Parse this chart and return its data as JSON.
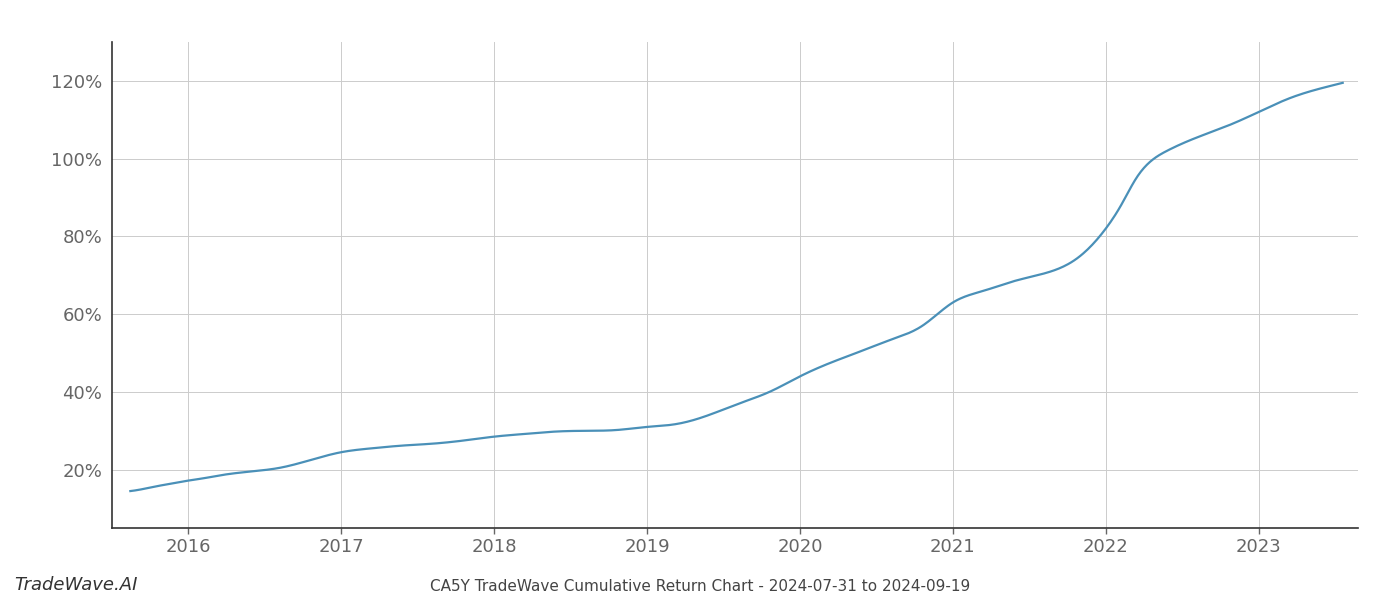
{
  "title": "CA5Y TradeWave Cumulative Return Chart - 2024-07-31 to 2024-09-19",
  "watermark": "TradeWave.AI",
  "line_color": "#4a90b8",
  "background_color": "#ffffff",
  "grid_color": "#cccccc",
  "x_values": [
    2015.62,
    2015.7,
    2015.8,
    2015.9,
    2016.0,
    2016.1,
    2016.2,
    2016.4,
    2016.6,
    2016.8,
    2017.0,
    2017.2,
    2017.4,
    2017.6,
    2017.8,
    2018.0,
    2018.2,
    2018.4,
    2018.6,
    2018.8,
    2019.0,
    2019.1,
    2019.2,
    2019.4,
    2019.6,
    2019.8,
    2020.0,
    2020.2,
    2020.4,
    2020.6,
    2020.8,
    2021.0,
    2021.2,
    2021.4,
    2021.5,
    2021.6,
    2021.8,
    2022.0,
    2022.1,
    2022.2,
    2022.4,
    2022.6,
    2022.8,
    2023.0,
    2023.2,
    2023.4,
    2023.55
  ],
  "y_values": [
    14.5,
    15.0,
    15.8,
    16.5,
    17.2,
    17.8,
    18.5,
    19.5,
    20.5,
    22.5,
    24.5,
    25.5,
    26.2,
    26.7,
    27.5,
    28.5,
    29.2,
    29.8,
    30.0,
    30.2,
    31.0,
    31.3,
    31.8,
    34.0,
    37.0,
    40.0,
    44.0,
    47.5,
    50.5,
    53.5,
    57.0,
    63.0,
    66.0,
    68.5,
    69.5,
    70.5,
    74.0,
    82.0,
    88.0,
    95.0,
    102.0,
    105.5,
    108.5,
    112.0,
    115.5,
    118.0,
    119.5
  ],
  "xlim": [
    2015.5,
    2023.65
  ],
  "ylim": [
    5,
    130
  ],
  "yticks": [
    20,
    40,
    60,
    80,
    100,
    120
  ],
  "xticks": [
    2016,
    2017,
    2018,
    2019,
    2020,
    2021,
    2022,
    2023
  ],
  "line_width": 1.6,
  "title_fontsize": 11,
  "tick_fontsize": 13,
  "watermark_fontsize": 13,
  "spine_color": "#888888",
  "tick_color": "#666666",
  "title_color": "#444444",
  "watermark_color": "#333333"
}
